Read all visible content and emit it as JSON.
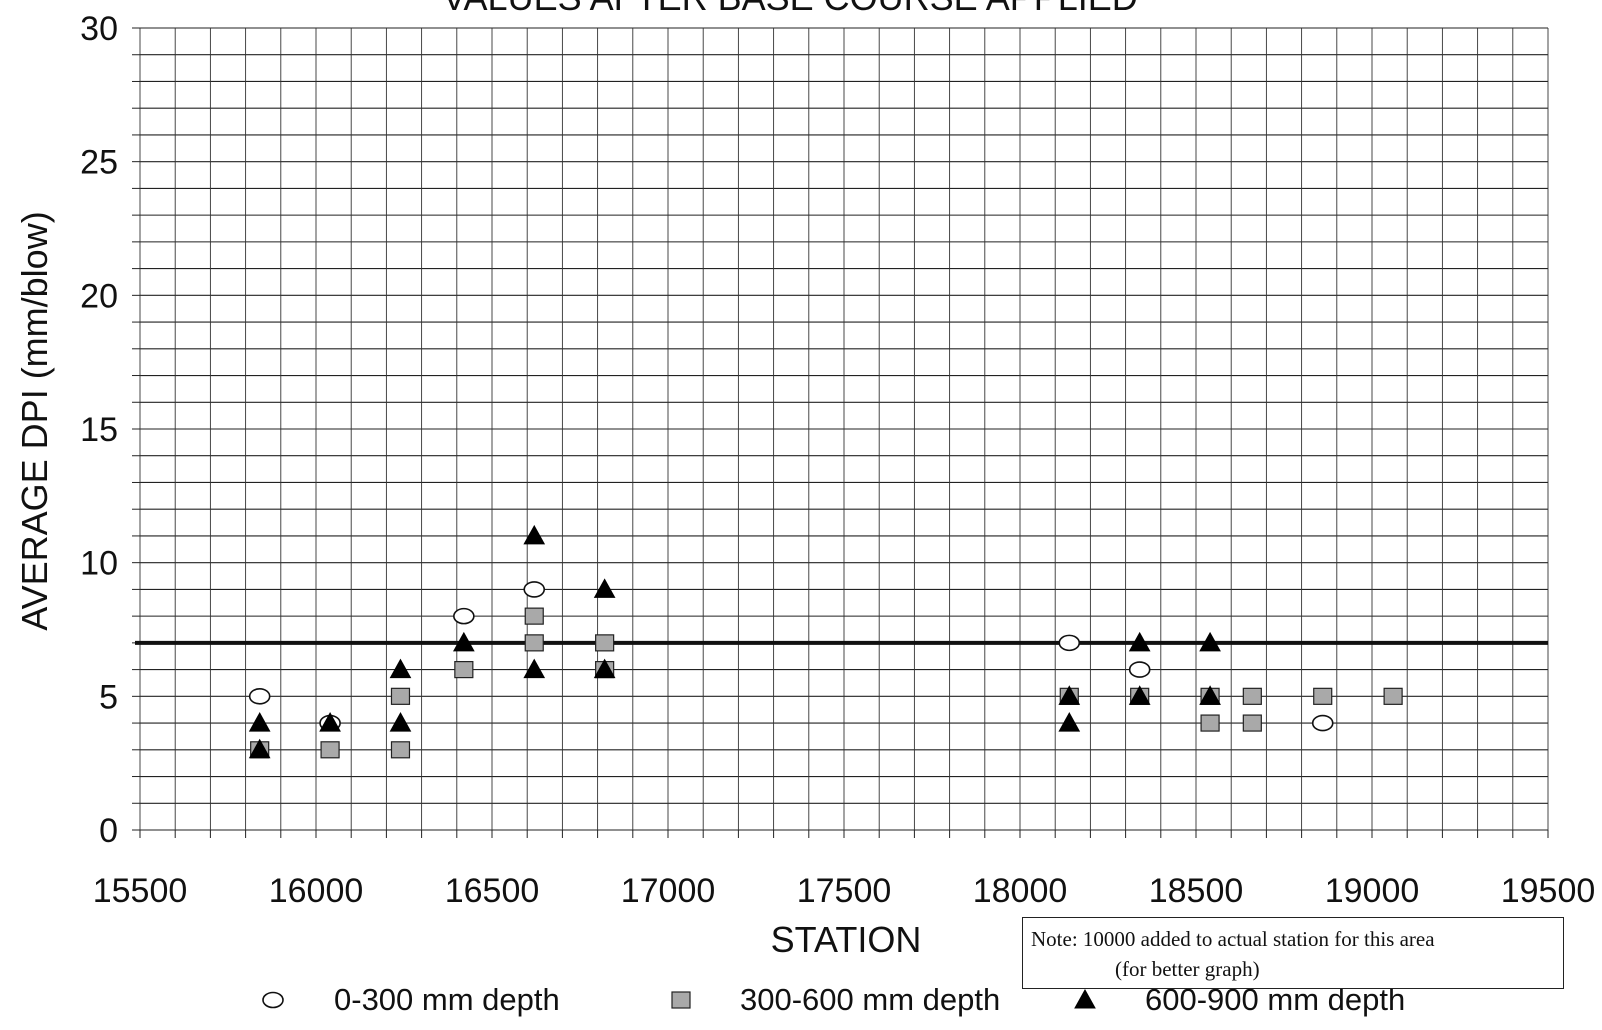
{
  "chart_data": {
    "type": "scatter",
    "title": "VALUES AFTER BASE COURSE APPLIED",
    "xlabel": "STATION",
    "ylabel": "AVERAGE DPI  (mm/blow)",
    "xlim": [
      15500,
      19500
    ],
    "ylim": [
      0,
      30
    ],
    "x_ticks": [
      "15500",
      "16000",
      "16500",
      "17000",
      "17500",
      "18000",
      "18500",
      "19000",
      "19500"
    ],
    "y_ticks": [
      "0",
      "5",
      "10",
      "15",
      "20",
      "25",
      "30"
    ],
    "grid": true,
    "reference_line": {
      "y": 7
    },
    "legend_position": "bottom",
    "series": [
      {
        "name": "0-300 mm depth",
        "marker": "open-circle",
        "color": "#000000",
        "points": [
          [
            15840,
            5
          ],
          [
            16040,
            4
          ],
          [
            16420,
            8
          ],
          [
            16620,
            9
          ],
          [
            18140,
            7
          ],
          [
            18340,
            6
          ],
          [
            18860,
            4
          ]
        ]
      },
      {
        "name": "300-600 mm depth",
        "marker": "shaded-square",
        "color": "#a0a0a0",
        "points": [
          [
            15840,
            3
          ],
          [
            16040,
            3
          ],
          [
            16240,
            5
          ],
          [
            16240,
            3
          ],
          [
            16420,
            6
          ],
          [
            16620,
            8
          ],
          [
            16620,
            7
          ],
          [
            16820,
            7
          ],
          [
            16820,
            6
          ],
          [
            18140,
            5
          ],
          [
            18340,
            5
          ],
          [
            18540,
            5
          ],
          [
            18540,
            4
          ],
          [
            18660,
            5
          ],
          [
            18660,
            4
          ],
          [
            18860,
            5
          ],
          [
            19060,
            5
          ]
        ]
      },
      {
        "name": "600-900 mm depth",
        "marker": "filled-triangle",
        "color": "#000000",
        "points": [
          [
            15840,
            4
          ],
          [
            15840,
            3
          ],
          [
            16040,
            4
          ],
          [
            16240,
            6
          ],
          [
            16240,
            4
          ],
          [
            16420,
            7
          ],
          [
            16620,
            11
          ],
          [
            16620,
            6
          ],
          [
            16820,
            9
          ],
          [
            16820,
            6
          ],
          [
            18140,
            5
          ],
          [
            18140,
            4
          ],
          [
            18340,
            7
          ],
          [
            18340,
            5
          ],
          [
            18540,
            7
          ],
          [
            18540,
            5
          ]
        ]
      }
    ]
  },
  "note": {
    "line1": "Note: 10000 added to actual station for this area",
    "line2": "(for better graph)"
  }
}
